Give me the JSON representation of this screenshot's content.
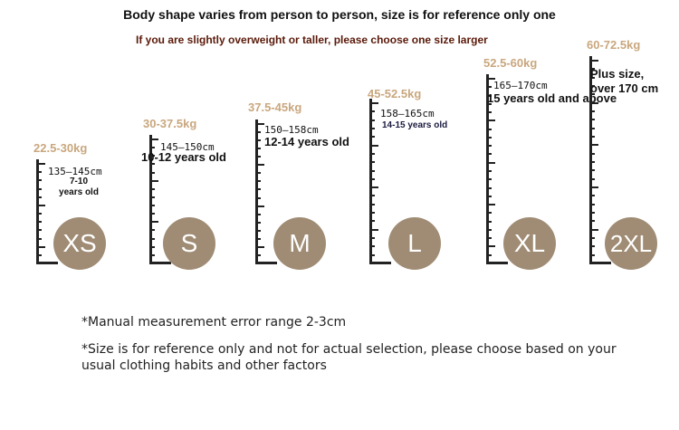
{
  "header": {
    "title": "Body shape varies from person to person, size is for reference only one",
    "subtitle": "If you are slightly overweight or taller, please choose one size larger"
  },
  "sizes": [
    {
      "size": "XS",
      "weight": "22.5-30kg",
      "height": "135—145cm",
      "age": "7-10\nyears old"
    },
    {
      "size": "S",
      "weight": "30-37.5kg",
      "height": "145—150cm",
      "age": "10-12 years old"
    },
    {
      "size": "M",
      "weight": "37.5-45kg",
      "height": "150—158cm",
      "age": "12-14 years old"
    },
    {
      "size": "L",
      "weight": "45-52.5kg",
      "height": "158—165cm",
      "age": "14-15 years old"
    },
    {
      "size": "XL",
      "weight": "52.5-60kg",
      "height": "165—170cm",
      "age": "15 years old and above"
    },
    {
      "size": "2XL",
      "weight": "60-72.5kg",
      "height": "Plus size,\nover 170 cm",
      "age": ""
    }
  ],
  "notes": {
    "error_range": "*Manual measurement error range 2-3cm",
    "reference": "*Size is for reference only and not for actual selection, please choose based on your usual clothing habits and other factors"
  },
  "colors": {
    "circle": "#a08c74",
    "weight": "#c9a77e",
    "subtitle": "#5a1a0a"
  }
}
